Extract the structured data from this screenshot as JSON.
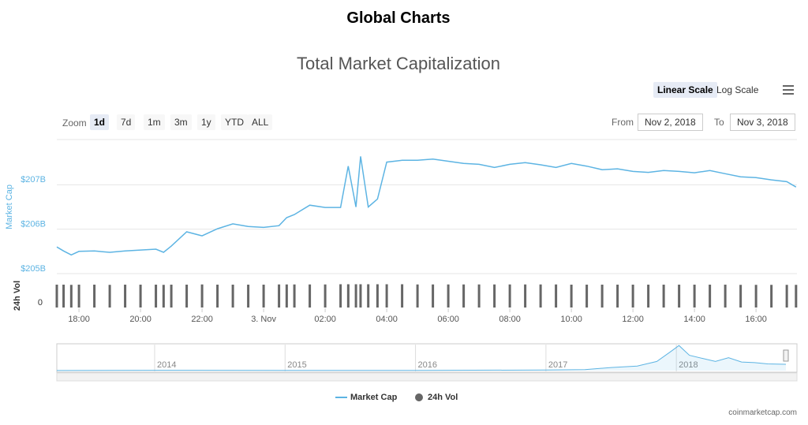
{
  "header": {
    "title": "Global Charts"
  },
  "controls": {
    "scales": [
      "Linear Scale",
      "Log Scale"
    ],
    "zoom_label": "Zoom",
    "zoom": [
      "1d",
      "7d",
      "1m",
      "3m",
      "1y",
      "YTD",
      "ALL"
    ],
    "from_label": "From",
    "from": "Nov 2, 2018",
    "to_label": "To",
    "to": "Nov 3, 2018"
  },
  "chart_data": [
    {
      "type": "line",
      "title": "Total Market Capitalization",
      "y_label": "Market Cap",
      "x": [
        17.28,
        17.5,
        17.75,
        18,
        18.5,
        19,
        19.5,
        20,
        20.5,
        20.75,
        21,
        21.5,
        22,
        22.5,
        23,
        23.5,
        24,
        24.5,
        24.75,
        25,
        25.5,
        26,
        26.5,
        26.75,
        27,
        27.15,
        27.4,
        27.7,
        28,
        28.5,
        29,
        29.5,
        30,
        30.5,
        31,
        31.5,
        32,
        32.5,
        33,
        33.5,
        34,
        34.5,
        35,
        35.5,
        36,
        36.5,
        37,
        37.5,
        38,
        38.5,
        39,
        39.5,
        40,
        40.5,
        41,
        41.3
      ],
      "xlim": [
        17.28,
        41.33
      ],
      "xticks": [
        {
          "value": 18,
          "label": "18:00"
        },
        {
          "value": 20,
          "label": "20:00"
        },
        {
          "value": 22,
          "label": "22:00"
        },
        {
          "value": 24,
          "label": "3. Nov"
        },
        {
          "value": 26,
          "label": "02:00"
        },
        {
          "value": 28,
          "label": "04:00"
        },
        {
          "value": 30,
          "label": "06:00"
        },
        {
          "value": 32,
          "label": "08:00"
        },
        {
          "value": 34,
          "label": "10:00"
        },
        {
          "value": 36,
          "label": "12:00"
        },
        {
          "value": 38,
          "label": "14:00"
        },
        {
          "value": 40,
          "label": "16:00"
        }
      ],
      "ylim": [
        205,
        208
      ],
      "yticks": [
        {
          "value": 205,
          "label": "$205B"
        },
        {
          "value": 206,
          "label": "$206B"
        },
        {
          "value": 207,
          "label": "$207B"
        }
      ],
      "grid": true,
      "series": [
        {
          "name": "Market Cap",
          "color": "#5db4e3",
          "values": [
            205.6,
            205.51,
            205.42,
            205.5,
            205.51,
            205.48,
            205.51,
            205.53,
            205.55,
            205.48,
            205.62,
            205.94,
            205.85,
            206.01,
            206.12,
            206.06,
            206.04,
            206.08,
            206.26,
            206.33,
            206.54,
            206.49,
            206.49,
            207.42,
            206.5,
            207.64,
            206.5,
            206.68,
            207.51,
            207.55,
            207.55,
            207.58,
            207.53,
            207.48,
            207.46,
            207.39,
            207.46,
            207.5,
            207.45,
            207.39,
            207.48,
            207.42,
            207.34,
            207.36,
            207.3,
            207.28,
            207.32,
            207.3,
            207.27,
            207.32,
            207.25,
            207.18,
            207.16,
            207.11,
            207.07,
            206.95
          ]
        }
      ]
    },
    {
      "type": "bar",
      "y_label": "24h Vol",
      "x": [
        17.28,
        17.5,
        17.75,
        18,
        18.5,
        19,
        19.5,
        20,
        20.5,
        20.75,
        21,
        21.5,
        22,
        22.5,
        23,
        23.5,
        24,
        24.5,
        24.75,
        25,
        25.5,
        26,
        26.5,
        26.75,
        27,
        27.15,
        27.4,
        27.7,
        28,
        28.5,
        29,
        29.5,
        30,
        30.5,
        31,
        31.5,
        32,
        32.5,
        33,
        33.5,
        34,
        34.5,
        35,
        35.5,
        36,
        36.5,
        37,
        37.5,
        38,
        38.5,
        39,
        39.5,
        40,
        40.5,
        41,
        41.3
      ],
      "xlim": [
        17.28,
        41.33
      ],
      "ylim": [
        0,
        12
      ],
      "yticks": [
        0
      ],
      "series": [
        {
          "name": "24h Vol",
          "color": "#666666",
          "values": [
            11.6,
            11.6,
            11.5,
            11.6,
            11.6,
            11.5,
            11.6,
            11.6,
            11.6,
            11.5,
            11.6,
            11.6,
            11.7,
            11.6,
            11.6,
            11.6,
            11.6,
            11.7,
            11.7,
            11.7,
            11.7,
            11.7,
            11.8,
            11.8,
            11.8,
            11.8,
            11.8,
            11.8,
            11.8,
            11.8,
            11.7,
            11.7,
            11.7,
            11.7,
            11.7,
            11.7,
            11.7,
            11.7,
            11.7,
            11.7,
            11.6,
            11.6,
            11.6,
            11.6,
            11.6,
            11.6,
            11.6,
            11.6,
            11.6,
            11.6,
            11.6,
            11.5,
            11.5,
            11.5,
            11.5,
            11.5
          ]
        }
      ]
    },
    {
      "type": "line",
      "x": [
        2013.25,
        2014,
        2015,
        2016,
        2017,
        2017.3,
        2017.5,
        2017.7,
        2017.85,
        2017.95,
        2018.02,
        2018.1,
        2018.2,
        2018.3,
        2018.4,
        2018.5,
        2018.6,
        2018.7,
        2018.84
      ],
      "xlim": [
        2013.25,
        2018.84
      ],
      "xticks": [
        2014,
        2015,
        2016,
        2017,
        2018
      ],
      "ylim": [
        0,
        850
      ],
      "series": [
        {
          "name": "Market Cap",
          "color": "#5db4e3",
          "values": [
            1.5,
            10,
            5,
            7,
            18,
            30,
            100,
            150,
            300,
            600,
            820,
            500,
            400,
            300,
            420,
            280,
            260,
            220,
            207
          ]
        }
      ]
    }
  ],
  "credit": "coinmarketcap.com"
}
